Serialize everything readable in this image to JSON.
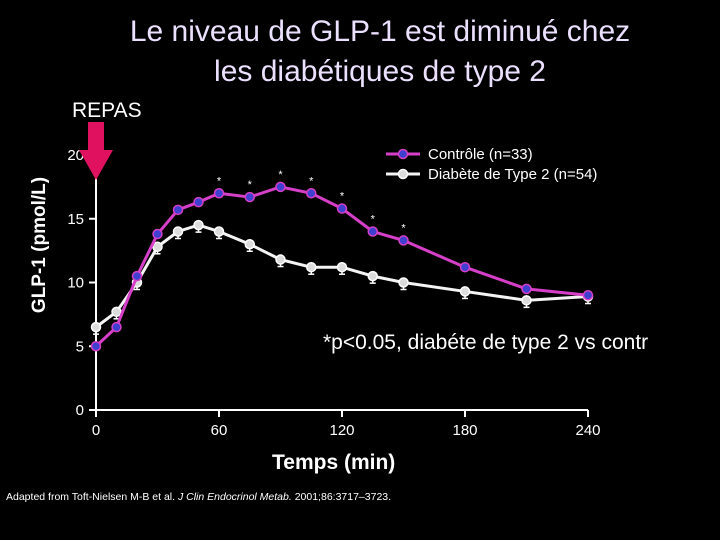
{
  "title_line1": "Le niveau de GLP-1 est diminué chez",
  "title_line2": "les diabétiques de type 2",
  "repas_label": "REPAS",
  "annotation": "*p<0.05, diabéte de type 2  vs contr",
  "source_prefix": "Adapted from Toft-Nielsen M-B et al. ",
  "source_journal": "J Clin Endocrinol Metab.",
  "source_suffix": " 2001;86:3717–3723.",
  "colors": {
    "control": "#d63fc8",
    "diabetes": "#f4f4f4",
    "marker_control": "#3f3fd0",
    "arrow": "#e0115f"
  },
  "chart_data": {
    "type": "line",
    "xlabel": "Temps (min)",
    "ylabel": "GLP-1 (pmol/L)",
    "xlim": [
      0,
      240
    ],
    "ylim": [
      0,
      20
    ],
    "xticks": [
      0,
      60,
      120,
      180,
      240
    ],
    "yticks": [
      0,
      5,
      10,
      15,
      20
    ],
    "legend_position": "top-right",
    "series": [
      {
        "name": "Contrôle (n=33)",
        "x": [
          0,
          10,
          20,
          30,
          40,
          50,
          60,
          75,
          90,
          105,
          120,
          135,
          150,
          180,
          210,
          240
        ],
        "y": [
          5.0,
          6.5,
          10.5,
          13.8,
          15.7,
          16.3,
          17.0,
          16.7,
          17.5,
          17.0,
          15.8,
          14.0,
          13.3,
          11.2,
          9.5,
          9.0
        ],
        "significant": [
          false,
          false,
          false,
          false,
          false,
          false,
          true,
          true,
          true,
          true,
          true,
          true,
          true,
          false,
          false,
          false
        ]
      },
      {
        "name": "Diabète de Type 2 (n=54)",
        "x": [
          0,
          10,
          20,
          30,
          40,
          50,
          60,
          75,
          90,
          105,
          120,
          135,
          150,
          180,
          210,
          240
        ],
        "y": [
          6.5,
          7.7,
          10.0,
          12.8,
          14.0,
          14.5,
          14.0,
          13.0,
          11.8,
          11.2,
          11.2,
          10.5,
          10.0,
          9.3,
          8.6,
          8.9
        ]
      }
    ]
  }
}
